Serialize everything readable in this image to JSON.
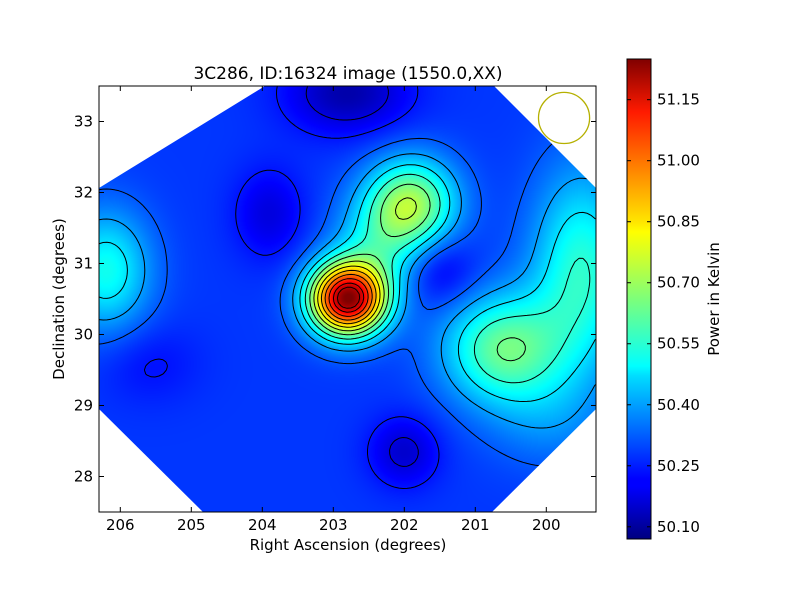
{
  "chart_data": {
    "type": "heatmap",
    "title": "3C286, ID:16324 image (1550.0,XX)",
    "xlabel": "Right Ascension (degrees)",
    "ylabel": "Declination (degrees)",
    "xlim": [
      206.3,
      199.3
    ],
    "ylim": [
      27.5,
      33.5
    ],
    "xticks": [
      206,
      205,
      204,
      203,
      202,
      201,
      200
    ],
    "xtick_labels": [
      "206",
      "205",
      "204",
      "203",
      "202",
      "201",
      "200"
    ],
    "yticks": [
      28,
      29,
      30,
      31,
      32,
      33
    ],
    "ytick_labels": [
      "28",
      "29",
      "30",
      "31",
      "32",
      "33"
    ],
    "colorbar": {
      "label": "Power in Kelvin",
      "range": [
        50.07,
        51.25
      ],
      "ticks": [
        50.1,
        50.25,
        50.4,
        50.55,
        50.7,
        50.85,
        51.0,
        51.15
      ],
      "tick_labels": [
        "50.10",
        "50.25",
        "50.40",
        "50.55",
        "50.70",
        "50.85",
        "51.00",
        "51.15"
      ]
    },
    "background_level": 50.28,
    "peak": {
      "ra": 202.8,
      "dec": 30.5,
      "value": 51.22
    },
    "features": [
      {
        "ra": 202.8,
        "dec": 30.5,
        "amplitude": 0.94,
        "sigma_ra": 0.38,
        "sigma_dec": 0.36
      },
      {
        "ra": 201.9,
        "dec": 31.85,
        "amplitude": 0.4,
        "sigma_ra": 0.45,
        "sigma_dec": 0.45
      },
      {
        "ra": 202.35,
        "dec": 31.25,
        "amplitude": 0.18,
        "sigma_ra": 0.45,
        "sigma_dec": 0.5
      },
      {
        "ra": 200.6,
        "dec": 29.8,
        "amplitude": 0.35,
        "sigma_ra": 0.6,
        "sigma_dec": 0.55
      },
      {
        "ra": 199.5,
        "dec": 30.9,
        "amplitude": 0.28,
        "sigma_ra": 0.5,
        "sigma_dec": 1.0
      },
      {
        "ra": 206.2,
        "dec": 30.9,
        "amplitude": 0.25,
        "sigma_ra": 0.45,
        "sigma_dec": 0.6
      },
      {
        "ra": 200.0,
        "dec": 28.8,
        "amplitude": 0.08,
        "sigma_ra": 0.6,
        "sigma_dec": 0.5
      },
      {
        "ra": 201.5,
        "dec": 30.9,
        "amplitude": -0.1,
        "sigma_ra": 0.35,
        "sigma_dec": 0.35
      },
      {
        "ra": 202.0,
        "dec": 28.35,
        "amplitude": -0.12,
        "sigma_ra": 0.35,
        "sigma_dec": 0.35
      },
      {
        "ra": 203.9,
        "dec": 31.7,
        "amplitude": -0.1,
        "sigma_ra": 0.35,
        "sigma_dec": 0.45
      },
      {
        "ra": 202.8,
        "dec": 33.4,
        "amplitude": -0.16,
        "sigma_ra": 0.6,
        "sigma_dec": 0.4
      },
      {
        "ra": 205.6,
        "dec": 29.6,
        "amplitude": -0.05,
        "sigma_ra": 0.5,
        "sigma_dec": 0.4
      }
    ],
    "contour_levels": [
      50.18,
      50.24,
      50.32,
      50.4,
      50.48,
      50.56,
      50.64,
      50.72,
      50.8,
      50.88,
      50.96,
      51.04,
      51.12,
      51.18
    ],
    "beam_marker": {
      "ra": 199.75,
      "dec": 33.05,
      "radius_deg": 0.36,
      "color": "#b5b000"
    },
    "colors": {
      "contour": "#000000",
      "axes": "#000000"
    }
  }
}
